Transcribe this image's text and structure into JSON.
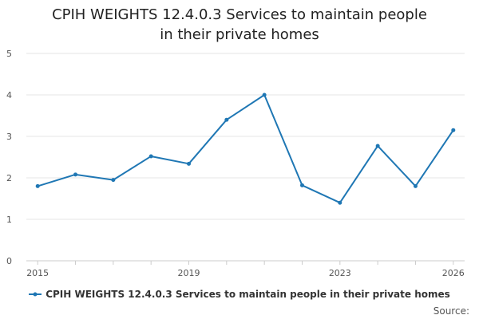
{
  "chart_data": {
    "type": "line",
    "title": "CPIH WEIGHTS 12.4.0.3 Services to maintain people in their private homes",
    "xlabel": "",
    "ylabel": "",
    "x": [
      2015,
      2016,
      2017,
      2018,
      2019,
      2020,
      2021,
      2022,
      2023,
      2024,
      2025,
      2026
    ],
    "xlim": [
      2014.7,
      2026.3
    ],
    "xticks": [
      2015,
      2019,
      2023,
      2026
    ],
    "ylim": [
      0,
      5
    ],
    "yticks": [
      0,
      1,
      2,
      3,
      4,
      5
    ],
    "grid": true,
    "legend_position": "bottom",
    "series": [
      {
        "name": "CPIH WEIGHTS 12.4.0.3 Services to maintain people in their private homes",
        "color": "#1f77b4",
        "values": [
          1.8,
          2.08,
          1.95,
          2.52,
          2.34,
          3.4,
          4.0,
          1.82,
          1.4,
          2.77,
          1.8,
          3.15
        ]
      }
    ]
  },
  "source_label": "Source:"
}
